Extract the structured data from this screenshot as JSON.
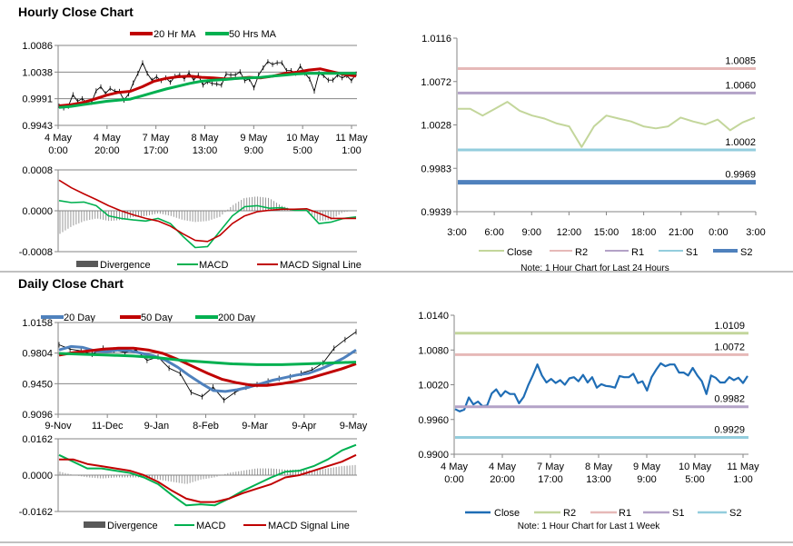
{
  "sections": {
    "hourly_title": "Hourly Close Chart",
    "daily_title": "Daily Close Chart"
  },
  "colors": {
    "ma_red": "#c00000",
    "ma_green": "#00b050",
    "ma_blue": "#4f81bd",
    "divergence": "#595959",
    "price": "#000000",
    "hourly_close": "#c3d69b",
    "weekly_close": "#1f6db5",
    "r2_pink": "#e6b9b8",
    "r1_purple": "#b3a2c7",
    "s1_cyan": "#93cddd",
    "s2_blue": "#4f81bd",
    "r2_green": "#c3d69b"
  },
  "chart_data": [
    {
      "id": "hourly_price",
      "type": "line",
      "ylim": [
        0.9943,
        1.0086
      ],
      "yticks": [
        "1.0086",
        "1.0038",
        "0.9991",
        "0.9943"
      ],
      "xticks": [
        [
          "4 May",
          "0:00"
        ],
        [
          "4 May",
          "20:00"
        ],
        [
          "7 May",
          "17:00"
        ],
        [
          "8 May",
          "13:00"
        ],
        [
          "9 May",
          "9:00"
        ],
        [
          "10 May",
          "5:00"
        ],
        [
          "11 May",
          "1:00"
        ]
      ],
      "legend": "top",
      "series": [
        {
          "values": [
            0.9978,
            0.9974,
            0.9977,
            0.9998,
            0.9986,
            0.9991,
            0.9983,
            0.9984,
            1.0005,
            1.0012,
            1.0,
            1.0009,
            1.0004,
            1.0004,
            0.9988,
            0.9999,
            1.0019,
            1.0036,
            1.0055,
            1.0036,
            1.0024,
            1.003,
            1.0023,
            1.0028,
            1.002,
            1.0031,
            1.0033,
            1.0026,
            1.0037,
            1.0024,
            1.0033,
            1.0015,
            1.0021,
            1.0018,
            1.0017,
            1.0015,
            1.0035,
            1.0033,
            1.0033,
            1.0039,
            1.0023,
            1.0026,
            1.001,
            1.0033,
            1.0046,
            1.0057,
            1.0052,
            1.0055,
            1.0055,
            1.0041,
            1.0041,
            1.0036,
            1.0049,
            1.0036,
            1.0026,
            1.0004,
            1.0036,
            1.0032,
            1.0024,
            1.0024,
            1.0033,
            1.0028,
            1.0032,
            1.0023,
            1.0035
          ]
        },
        {
          "name": "20 Hr MA",
          "values": [
            0.9978,
            0.998,
            0.9984,
            0.999,
            0.9997,
            1.0002,
            1.0004,
            1.0012,
            1.0022,
            1.0027,
            1.003,
            1.0031,
            1.0029,
            1.0028,
            1.0026,
            1.0027,
            1.0029,
            1.0028,
            1.0031,
            1.0036,
            1.0038,
            1.0042,
            1.0044,
            1.0039,
            1.0034,
            1.0031
          ]
        },
        {
          "name": "50 Hrs MA",
          "values": [
            0.9975,
            0.9977,
            0.998,
            0.9983,
            0.9986,
            0.9988,
            0.999,
            0.9996,
            1.0002,
            1.0008,
            1.0013,
            1.0018,
            1.0022,
            1.0024,
            1.0025,
            1.0027,
            1.0028,
            1.0029,
            1.0031,
            1.0033,
            1.0035,
            1.0036,
            1.0036,
            1.0036,
            1.0036,
            1.0036
          ]
        }
      ]
    },
    {
      "id": "hourly_macd",
      "type": "line",
      "ylim": [
        -0.0008,
        0.0008
      ],
      "yticks": [
        "0.0008",
        "0.0000",
        "-0.0008"
      ],
      "legend": "bottom",
      "series": [
        {
          "name": "Divergence",
          "type": "bar",
          "values": [
            -0.00045,
            -0.0003,
            -0.0002,
            -0.00015,
            -0.0002,
            -0.00018,
            -0.00012,
            -0.0001,
            -5e-05,
            -0.0001,
            -0.00018,
            -0.00022,
            -0.0002,
            -0.00012,
            0.0001,
            0.00025,
            0.00028,
            0.00025,
            0.0001,
            2e-05,
            1e-05,
            -0.0002,
            -0.00018,
            -3e-05,
            1e-05
          ]
        },
        {
          "name": "MACD",
          "values": [
            0.0002,
            0.00016,
            0.00017,
            0.0001,
            -0.0001,
            -0.00015,
            -0.00018,
            -0.0002,
            -0.00015,
            -0.00025,
            -0.0005,
            -0.00072,
            -0.0007,
            -0.0004,
            -0.0001,
            8e-05,
            0.0001,
            5e-05,
            6e-05,
            1e-05,
            1e-05,
            -0.00025,
            -0.00022,
            -0.00015,
            -0.00012
          ]
        },
        {
          "name": "MACD Signal Line",
          "values": [
            0.0006,
            0.00045,
            0.00033,
            0.00022,
            0.0001,
            0.0,
            -8e-05,
            -0.00015,
            -0.0002,
            -0.0003,
            -0.00045,
            -0.00058,
            -0.0006,
            -0.00048,
            -0.00025,
            -0.0001,
            -2e-05,
            1e-05,
            3e-05,
            3e-05,
            4e-05,
            -5e-05,
            -0.00015,
            -0.00015,
            -0.00015
          ]
        }
      ]
    },
    {
      "id": "hourly_levels",
      "type": "line",
      "ylim": [
        0.9939,
        1.0116
      ],
      "yticks": [
        "1.0116",
        "1.0072",
        "1.0028",
        "0.9983",
        "0.9939"
      ],
      "xticks": [
        "3:00",
        "6:00",
        "9:00",
        "12:00",
        "15:00",
        "18:00",
        "21:00",
        "0:00",
        "3:00"
      ],
      "legend": "bottom",
      "series": [
        {
          "name": "Close",
          "values": [
            1.0044,
            1.0044,
            1.0037,
            1.0044,
            1.0051,
            1.0042,
            1.0037,
            1.0034,
            1.0029,
            1.0026,
            1.0005,
            1.0026,
            1.0037,
            1.0034,
            1.0031,
            1.0026,
            1.0024,
            1.0026,
            1.0035,
            1.0031,
            1.0028,
            1.0033,
            1.0022,
            1.003,
            1.0035
          ]
        },
        {
          "name": "R2",
          "level": 1.0085,
          "label": "1.0085"
        },
        {
          "name": "R1",
          "level": 1.006,
          "label": "1.0060"
        },
        {
          "name": "S1",
          "level": 1.0002,
          "label": "1.0002"
        },
        {
          "name": "S2",
          "level": 0.9969,
          "label": "0.9969"
        }
      ],
      "note": "Note: 1 Hour Chart for Last 24 Hours"
    },
    {
      "id": "daily_price",
      "type": "line",
      "ylim": [
        0.9096,
        1.0158
      ],
      "yticks": [
        "1.0158",
        "0.9804",
        "0.9450",
        "0.9096"
      ],
      "xticks": [
        "9-Nov",
        "11-Dec",
        "9-Jan",
        "8-Feb",
        "9-Mar",
        "9-Apr",
        "9-May"
      ],
      "legend": "top",
      "series": [
        {
          "values": [
            0.99,
            0.985,
            0.983,
            0.979,
            0.986,
            0.984,
            0.981,
            0.984,
            0.972,
            0.976,
            0.963,
            0.957,
            0.935,
            0.93,
            0.941,
            0.926,
            0.935,
            0.941,
            0.944,
            0.948,
            0.951,
            0.953,
            0.957,
            0.961,
            0.969,
            0.986,
            0.996,
            1.005
          ]
        },
        {
          "name": "20 Day",
          "values": [
            0.984,
            0.988,
            0.987,
            0.983,
            0.982,
            0.984,
            0.983,
            0.98,
            0.977,
            0.972,
            0.964,
            0.954,
            0.945,
            0.937,
            0.936,
            0.938,
            0.941,
            0.945,
            0.949,
            0.952,
            0.955,
            0.957,
            0.962,
            0.968,
            0.975,
            0.984
          ]
        },
        {
          "name": "50 Day",
          "values": [
            0.978,
            0.981,
            0.983,
            0.985,
            0.986,
            0.986,
            0.984,
            0.98,
            0.973,
            0.965,
            0.957,
            0.95,
            0.946,
            0.943,
            0.943,
            0.945,
            0.948,
            0.952,
            0.957,
            0.962,
            0.968
          ]
        },
        {
          "name": "200 Day",
          "values": [
            0.98,
            0.979,
            0.978,
            0.977,
            0.975,
            0.972,
            0.97,
            0.968,
            0.967,
            0.967,
            0.968,
            0.969,
            0.97
          ]
        }
      ]
    },
    {
      "id": "daily_macd",
      "type": "line",
      "ylim": [
        -0.0162,
        0.0162
      ],
      "yticks": [
        "0.0162",
        "0.0000",
        "-0.0162"
      ],
      "legend": "bottom",
      "series": [
        {
          "name": "Divergence",
          "type": "bar",
          "values": [
            0.0015,
            0.0,
            -0.001,
            -0.0015,
            -0.001,
            -0.001,
            -0.001,
            -0.002,
            -0.003,
            -0.004,
            -0.002,
            -0.001,
            0.001,
            0.002,
            0.003,
            0.003,
            0.0025,
            0.0025,
            0.002,
            0.003,
            0.004,
            0.0045
          ]
        },
        {
          "name": "MACD",
          "values": [
            0.009,
            0.006,
            0.003,
            0.003,
            0.002,
            0.001,
            -0.001,
            -0.004,
            -0.009,
            -0.0135,
            -0.013,
            -0.0135,
            -0.0105,
            -0.007,
            -0.004,
            -0.001,
            0.0015,
            0.002,
            0.004,
            0.007,
            0.011,
            0.0135
          ]
        },
        {
          "name": "MACD Signal Line",
          "values": [
            0.007,
            0.007,
            0.005,
            0.004,
            0.003,
            0.002,
            0.0,
            -0.003,
            -0.007,
            -0.0105,
            -0.012,
            -0.012,
            -0.0105,
            -0.008,
            -0.006,
            -0.004,
            -0.001,
            0.0,
            0.002,
            0.004,
            0.006,
            0.009
          ]
        }
      ]
    },
    {
      "id": "weekly_levels",
      "type": "line",
      "ylim": [
        0.99,
        1.014
      ],
      "yticks": [
        "1.0140",
        "1.0080",
        "1.0020",
        "0.9960",
        "0.9900"
      ],
      "xticks": [
        [
          "4 May",
          "0:00"
        ],
        [
          "4 May",
          "20:00"
        ],
        [
          "7 May",
          "17:00"
        ],
        [
          "8 May",
          "13:00"
        ],
        [
          "9 May",
          "9:00"
        ],
        [
          "10 May",
          "5:00"
        ],
        [
          "11 May",
          "1:00"
        ]
      ],
      "legend": "bottom",
      "series": [
        {
          "name": "Close",
          "values": [
            0.9978,
            0.9974,
            0.9977,
            0.9998,
            0.9986,
            0.9991,
            0.9983,
            0.9984,
            1.0005,
            1.0012,
            1.0,
            1.0009,
            1.0004,
            1.0004,
            0.9988,
            0.9999,
            1.0019,
            1.0036,
            1.0055,
            1.0036,
            1.0024,
            1.003,
            1.0023,
            1.0028,
            1.002,
            1.0031,
            1.0033,
            1.0026,
            1.0037,
            1.0024,
            1.0033,
            1.0015,
            1.0021,
            1.0018,
            1.0017,
            1.0015,
            1.0035,
            1.0033,
            1.0033,
            1.0039,
            1.0023,
            1.0026,
            1.001,
            1.0033,
            1.0046,
            1.0057,
            1.0052,
            1.0055,
            1.0055,
            1.0041,
            1.0041,
            1.0036,
            1.0049,
            1.0036,
            1.0026,
            1.0004,
            1.0036,
            1.0032,
            1.0024,
            1.0024,
            1.0033,
            1.0028,
            1.0032,
            1.0023,
            1.0035
          ]
        },
        {
          "name": "R2",
          "level": 1.0109,
          "label": "1.0109"
        },
        {
          "name": "R1",
          "level": 1.0072,
          "label": "1.0072"
        },
        {
          "name": "S1",
          "level": 0.9982,
          "label": "0.9982"
        },
        {
          "name": "S2",
          "level": 0.9929,
          "label": "0.9929"
        }
      ],
      "note": "Note: 1 Hour Chart for Last 1 Week"
    }
  ]
}
